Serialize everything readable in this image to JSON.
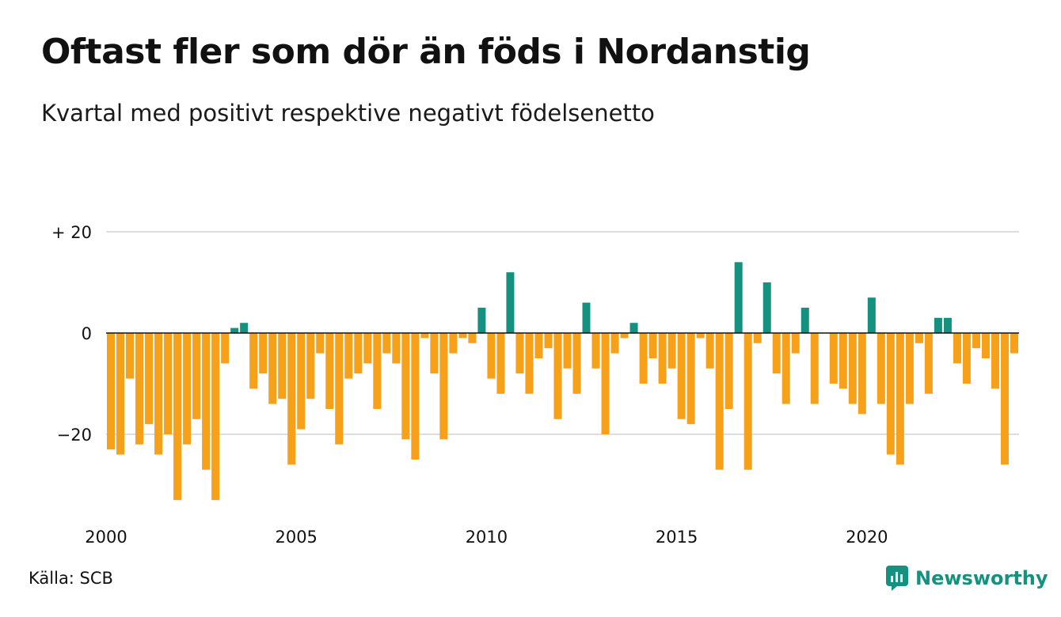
{
  "title": "Oftast fler som dör än föds i Nordanstig",
  "subtitle": "Kvartal med positivt respektive negativt födelsenetto",
  "source": "Källa: SCB",
  "brand": "Newsworthy",
  "icons": {
    "brand_logo": "newsworthy-chart-bubble-icon"
  },
  "colors": {
    "positive": "#15917f",
    "negative": "#f7a11a",
    "grid": "#dddddd",
    "brand": "#15917f"
  },
  "chart_data": {
    "type": "bar",
    "x_start": "2000 Q1",
    "ylim": [
      -36,
      20
    ],
    "y_ticks": [
      20,
      0,
      -20
    ],
    "y_tick_labels": [
      "+ 20",
      "0",
      "−20"
    ],
    "x_ticks": [
      "2000",
      "2005",
      "2010",
      "2015",
      "2020"
    ],
    "values": [
      -23,
      -24,
      -9,
      -22,
      -18,
      -24,
      -20,
      -33,
      -22,
      -17,
      -27,
      -33,
      -6,
      1,
      2,
      -11,
      -8,
      -14,
      -13,
      -26,
      -19,
      -13,
      -4,
      -15,
      -22,
      -9,
      -8,
      -6,
      -15,
      -4,
      -6,
      -21,
      -25,
      -1,
      -8,
      -21,
      -4,
      -1,
      -2,
      5,
      -9,
      -12,
      12,
      -8,
      -12,
      -5,
      -3,
      -17,
      -7,
      -12,
      6,
      -7,
      -20,
      -4,
      -1,
      2,
      -10,
      -5,
      -10,
      -7,
      -17,
      -18,
      -1,
      -7,
      -27,
      -15,
      14,
      -27,
      -2,
      10,
      -8,
      -14,
      -4,
      5,
      -14,
      0,
      -10,
      -11,
      -14,
      -16,
      7,
      -14,
      -24,
      -26,
      -14,
      -2,
      -12,
      3,
      3,
      -6,
      -10,
      -3,
      -5,
      -11,
      -26,
      -4
    ]
  }
}
